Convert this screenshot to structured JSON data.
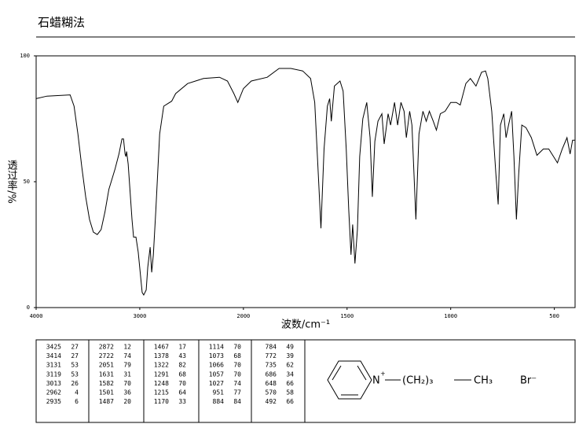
{
  "title": "石蜡糊法",
  "chart_data": {
    "type": "line",
    "x_label": "波数/cm⁻¹",
    "y_label": "透过率/%",
    "x": [
      4000,
      3896,
      3672,
      3634,
      3597,
      3560,
      3522,
      3485,
      3448,
      3410,
      3373,
      3336,
      3298,
      3239,
      3201,
      3172,
      3157,
      3142,
      3134,
      3127,
      3112,
      3075,
      3060,
      3037,
      3015,
      2977,
      2962,
      2938,
      2923,
      2900,
      2885,
      2869,
      2846,
      2808,
      2769,
      2731,
      2692,
      2654,
      2538,
      2385,
      2231,
      2154,
      2092,
      2054,
      2000,
      1962,
      1885,
      1828,
      1771,
      1714,
      1676,
      1656,
      1637,
      1626,
      1611,
      1595,
      1584,
      1576,
      1561,
      1534,
      1519,
      1504,
      1492,
      1481,
      1473,
      1462,
      1450,
      1439,
      1424,
      1405,
      1389,
      1378,
      1366,
      1351,
      1332,
      1321,
      1302,
      1290,
      1271,
      1256,
      1240,
      1225,
      1214,
      1198,
      1187,
      1168,
      1153,
      1134,
      1118,
      1103,
      1084,
      1069,
      1050,
      1027,
      1000,
      973,
      954,
      927,
      905,
      878,
      851,
      832,
      821,
      802,
      782,
      771,
      760,
      744,
      733,
      721,
      706,
      695,
      683,
      672,
      657,
      637,
      611,
      584,
      553,
      527,
      504,
      485,
      462,
      439,
      424,
      412,
      400
    ],
    "series": [
      {
        "color": "#000000",
        "values": [
          83,
          84,
          84.5,
          80,
          69,
          56,
          44,
          35,
          30,
          29,
          31,
          38,
          47,
          55,
          61,
          67,
          67,
          61,
          60,
          62,
          57,
          35,
          28,
          28,
          22,
          6,
          5,
          7,
          16,
          24,
          14,
          21,
          38,
          69,
          80,
          81,
          82,
          85,
          89,
          91,
          91.5,
          90,
          85,
          81.5,
          87,
          90,
          91.5,
          95,
          95,
          94,
          91,
          81.5,
          50,
          31.5,
          63,
          80,
          83,
          74,
          88,
          90,
          86,
          63,
          39,
          21,
          33,
          17.5,
          31,
          60,
          75,
          81.5,
          67.5,
          44,
          66,
          74,
          77,
          65,
          77,
          72.5,
          81.5,
          72.5,
          81.5,
          78,
          67.5,
          78,
          72.5,
          35,
          69,
          78,
          74,
          78,
          74,
          70.5,
          77,
          78,
          81.5,
          81.5,
          80.5,
          89,
          91,
          88,
          93.5,
          94,
          91,
          78,
          53,
          41,
          72.5,
          77,
          67.5,
          72.5,
          78,
          60,
          35,
          53,
          72.5,
          71.5,
          67.5,
          60.5,
          63,
          63,
          60,
          57.5,
          63,
          67.5,
          61,
          66.5,
          66.5
        ]
      }
    ],
    "xlim": [
      4000,
      400
    ],
    "ylim": [
      0,
      100
    ],
    "xticks": [
      4000,
      3000,
      2000,
      1500,
      1000,
      500
    ],
    "yticks": [
      0,
      50,
      100
    ]
  },
  "peak_table": {
    "columns": [
      [
        [
          3425,
          27
        ],
        [
          3414,
          27
        ],
        [
          3131,
          53
        ],
        [
          3119,
          53
        ],
        [
          3013,
          26
        ],
        [
          2962,
          4
        ],
        [
          2935,
          6
        ]
      ],
      [
        [
          2872,
          12
        ],
        [
          2722,
          74
        ],
        [
          2051,
          79
        ],
        [
          1631,
          31
        ],
        [
          1582,
          70
        ],
        [
          1501,
          36
        ],
        [
          1487,
          20
        ]
      ],
      [
        [
          1467,
          17
        ],
        [
          1378,
          43
        ],
        [
          1322,
          82
        ],
        [
          1291,
          68
        ],
        [
          1248,
          70
        ],
        [
          1215,
          64
        ],
        [
          1170,
          33
        ]
      ],
      [
        [
          1114,
          70
        ],
        [
          1073,
          68
        ],
        [
          1066,
          70
        ],
        [
          1057,
          70
        ],
        [
          1027,
          74
        ],
        [
          951,
          77
        ],
        [
          884,
          84
        ]
      ],
      [
        [
          784,
          49
        ],
        [
          772,
          39
        ],
        [
          735,
          62
        ],
        [
          686,
          34
        ],
        [
          648,
          66
        ],
        [
          570,
          58
        ],
        [
          492,
          66
        ]
      ]
    ]
  },
  "structure": {
    "atom": "N",
    "charge": "+",
    "chain": "(CH₂)₃",
    "end": "CH₃",
    "counterion": "Br⁻"
  }
}
